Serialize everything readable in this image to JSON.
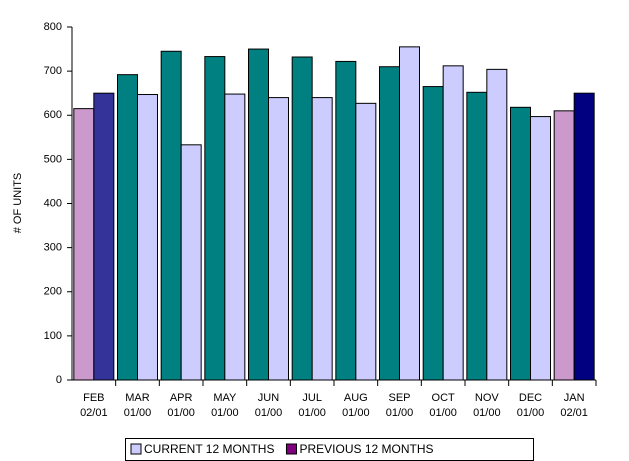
{
  "chart_data": {
    "type": "bar",
    "y_label": "# OF UNITS",
    "categories": [
      [
        "FEB",
        "02/01"
      ],
      [
        "MAR",
        "01/00"
      ],
      [
        "APR",
        "01/00"
      ],
      [
        "MAY",
        "01/00"
      ],
      [
        "JUN",
        "01/00"
      ],
      [
        "JUL",
        "01/00"
      ],
      [
        "AUG",
        "01/00"
      ],
      [
        "SEP",
        "01/00"
      ],
      [
        "OCT",
        "01/00"
      ],
      [
        "NOV",
        "01/00"
      ],
      [
        "DEC",
        "01/00"
      ],
      [
        "JAN",
        "02/01"
      ]
    ],
    "series": [
      {
        "name": "CURRENT 12 MONTHS",
        "color": "#ccccff",
        "bar_colors": [
          "#cc99cc",
          "#008080",
          "#008080",
          "#008080",
          "#008080",
          "#008080",
          "#008080",
          "#008080",
          "#008080",
          "#008080",
          "#008080",
          "#cc99cc"
        ],
        "values": [
          615,
          692,
          745,
          733,
          750,
          732,
          722,
          710,
          665,
          652,
          618,
          610
        ]
      },
      {
        "name": "PREVIOUS 12 MONTHS",
        "color": "#800080",
        "bar_colors": [
          "#333399",
          "#ccccff",
          "#ccccff",
          "#ccccff",
          "#ccccff",
          "#ccccff",
          "#ccccff",
          "#ccccff",
          "#ccccff",
          "#ccccff",
          "#ccccff",
          "#000080"
        ],
        "values": [
          650,
          647,
          533,
          648,
          640,
          640,
          627,
          755,
          712,
          704,
          597,
          650
        ]
      }
    ],
    "ylim": [
      0,
      800
    ],
    "yticks": [
      0,
      100,
      200,
      300,
      400,
      500,
      600,
      700,
      800
    ]
  }
}
